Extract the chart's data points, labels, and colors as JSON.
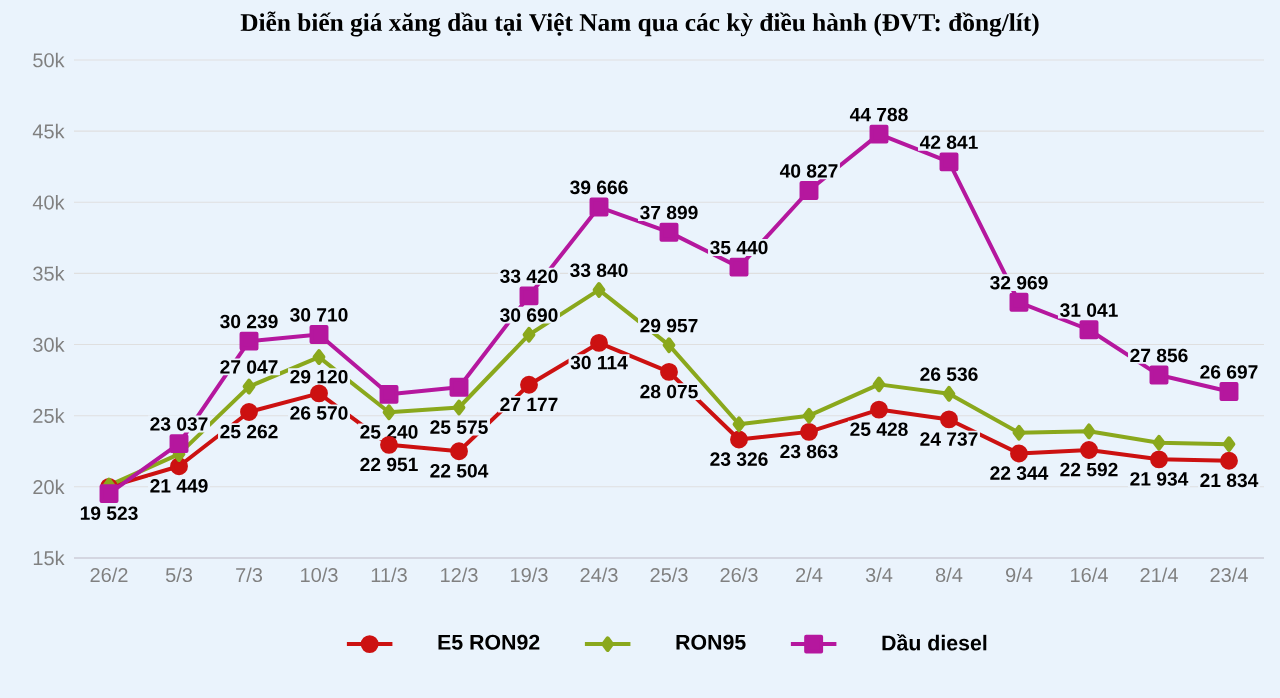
{
  "chart_data": {
    "type": "line",
    "title": "Diễn biến giá xăng dầu tại Việt Nam qua các kỳ điều hành (ĐVT: đồng/lít)",
    "categories": [
      "26/2",
      "5/3",
      "7/3",
      "10/3",
      "11/3",
      "12/3",
      "19/3",
      "24/3",
      "25/3",
      "26/3",
      "2/4",
      "3/4",
      "8/4",
      "9/4",
      "16/4",
      "21/4",
      "23/4"
    ],
    "ylim": [
      15000,
      50000
    ],
    "yticks": [
      {
        "value": 15000,
        "label": "15k"
      },
      {
        "value": 20000,
        "label": "20k"
      },
      {
        "value": 25000,
        "label": "25k"
      },
      {
        "value": 30000,
        "label": "30k"
      },
      {
        "value": 35000,
        "label": "35k"
      },
      {
        "value": 40000,
        "label": "40k"
      },
      {
        "value": 45000,
        "label": "45k"
      },
      {
        "value": 50000,
        "label": "50k"
      }
    ],
    "grid": "y",
    "legend": "bottom",
    "series": [
      {
        "name": "E5 RON92",
        "color": "#cc1111",
        "marker": "circle",
        "values": [
          20000,
          21449,
          25262,
          26570,
          22951,
          22504,
          27177,
          30114,
          28075,
          23326,
          23863,
          25428,
          24737,
          22344,
          22592,
          21934,
          21834
        ],
        "value_labels": [
          null,
          "21 449",
          "25 262",
          "26 570",
          "22 951",
          "22 504",
          "27 177",
          "30 114",
          "28 075",
          "23 326",
          "23 863",
          "25 428",
          "24 737",
          "22 344",
          "22 592",
          "21 934",
          "21 834"
        ]
      },
      {
        "name": "RON95",
        "color": "#8aa81c",
        "marker": "diamond",
        "values": [
          20100,
          22300,
          27047,
          29120,
          25240,
          25575,
          30690,
          33840,
          29957,
          24400,
          25000,
          27200,
          26536,
          23800,
          23900,
          23100,
          23000
        ],
        "value_labels": [
          null,
          null,
          "27 047",
          "29 120",
          "25 240",
          "25 575",
          "30 690",
          "33 840",
          "29 957",
          null,
          null,
          null,
          "26 536",
          null,
          null,
          null,
          null
        ]
      },
      {
        "name": "Dầu diesel",
        "color": "#b5179e",
        "marker": "square",
        "values": [
          19523,
          23037,
          30239,
          30710,
          26500,
          27000,
          33420,
          39666,
          37899,
          35440,
          40827,
          44788,
          42841,
          32969,
          31041,
          27856,
          26697
        ],
        "value_labels": [
          "19 523",
          "23 037",
          "30 239",
          "30 710",
          null,
          null,
          "33 420",
          "39 666",
          "37 899",
          "35 440",
          "40 827",
          "44 788",
          "42 841",
          "32 969",
          "31 041",
          "27 856",
          "26 697"
        ]
      }
    ]
  }
}
